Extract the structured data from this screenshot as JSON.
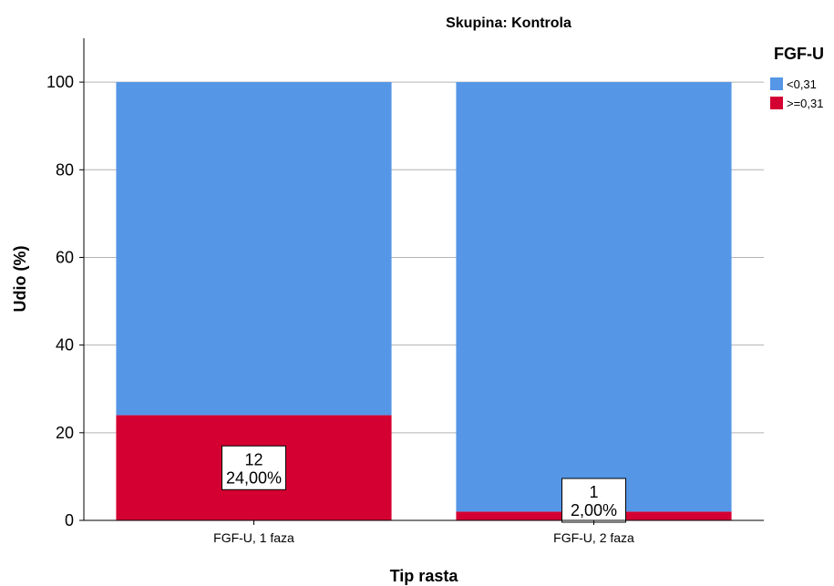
{
  "chart_data": {
    "type": "bar",
    "stacked": true,
    "title": "Skupina: Kontrola",
    "xlabel": "Tip rasta",
    "ylabel": "Udio (%)",
    "ylim": [
      0,
      110
    ],
    "yticks": [
      0,
      20,
      40,
      60,
      80,
      100
    ],
    "grid": true,
    "categories": [
      "FGF-U, 1 faza",
      "FGF-U, 2 faza"
    ],
    "legend": {
      "title": "FGF-U",
      "position": "right"
    },
    "series": [
      {
        "name": ">=0,31",
        "color": "#d50032",
        "values": [
          24,
          2
        ],
        "counts": [
          "12",
          "1"
        ],
        "labels": [
          "24,00%",
          "2,00%"
        ]
      },
      {
        "name": "<0,31",
        "color": "#5596e6",
        "values": [
          76,
          98
        ]
      }
    ]
  }
}
